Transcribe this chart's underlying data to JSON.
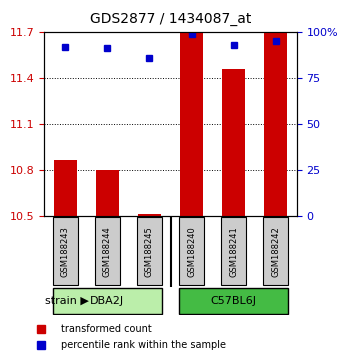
{
  "title": "GDS2877 / 1434087_at",
  "samples": [
    "GSM188243",
    "GSM188244",
    "GSM188245",
    "GSM188240",
    "GSM188241",
    "GSM188242"
  ],
  "red_values": [
    10.865,
    10.8,
    10.515,
    11.7,
    11.455,
    11.7
  ],
  "blue_values": [
    92,
    91,
    86,
    99,
    93,
    95
  ],
  "ylim_left": [
    10.5,
    11.7
  ],
  "ylim_right": [
    0,
    100
  ],
  "left_ticks": [
    10.5,
    10.8,
    11.1,
    11.4,
    11.7
  ],
  "right_ticks": [
    0,
    25,
    50,
    75,
    100
  ],
  "right_tick_labels": [
    "0",
    "25",
    "50",
    "75",
    "100%"
  ],
  "groups": [
    {
      "label": "DBA2J",
      "indices": [
        0,
        1,
        2
      ],
      "color": "#90EE90"
    },
    {
      "label": "C57BL6J",
      "indices": [
        3,
        4,
        5
      ],
      "color": "#00CC00"
    }
  ],
  "bar_color": "#CC0000",
  "dot_color": "#0000CC",
  "bar_width": 0.55,
  "grid_color": "#000000",
  "background_plot": "#FFFFFF",
  "sample_box_color": "#CCCCCC",
  "group_box_light": "#BBEEAA",
  "group_box_dark": "#44BB44",
  "ylabel_left_color": "#CC0000",
  "ylabel_right_color": "#0000CC",
  "legend_red_label": "transformed count",
  "legend_blue_label": "percentile rank within the sample",
  "strain_label": "strain"
}
